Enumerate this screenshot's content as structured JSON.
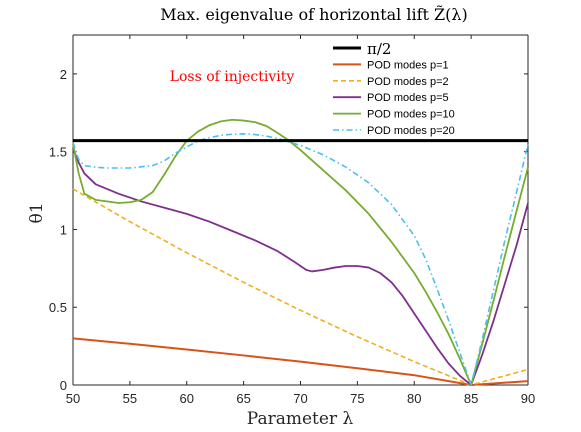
{
  "chart_data": {
    "type": "line",
    "title": "Max. eigenvalue of horizontal lift Z̃(λ)",
    "xlabel": "Parameter λ",
    "ylabel": "θ1",
    "xlim": [
      50,
      90
    ],
    "ylim": [
      0,
      2.25
    ],
    "x_ticks": [
      "50",
      "55",
      "60",
      "65",
      "70",
      "75",
      "80",
      "85",
      "90"
    ],
    "y_ticks": [
      "0",
      "0.5",
      "1",
      "1.5",
      "2"
    ],
    "grid": false,
    "legend_position": "top-right",
    "annotation": {
      "text": "Loss of injectivity",
      "color": "#ff0000"
    },
    "series": [
      {
        "name": "π/2",
        "color": "#000000",
        "dash": "solid",
        "width": 3,
        "x": [
          50,
          90
        ],
        "y": [
          1.5708,
          1.5708
        ]
      },
      {
        "name": "POD modes p=1",
        "color": "#d95319",
        "dash": "solid",
        "width": 2,
        "x": [
          50,
          55,
          60,
          65,
          70,
          75,
          80,
          85,
          90
        ],
        "y": [
          0.3,
          0.265,
          0.228,
          0.19,
          0.15,
          0.108,
          0.063,
          0.0,
          0.025
        ]
      },
      {
        "name": "POD modes p=2",
        "color": "#edb120",
        "dash": "dashed",
        "width": 1.6,
        "x": [
          50,
          55,
          60,
          65,
          70,
          75,
          80,
          85,
          90
        ],
        "y": [
          1.26,
          1.05,
          0.85,
          0.66,
          0.48,
          0.31,
          0.15,
          0.0,
          0.1
        ]
      },
      {
        "name": "POD modes p=5",
        "color": "#7e2f8e",
        "dash": "solid",
        "width": 1.8,
        "x": [
          50,
          50.5,
          51,
          52,
          54,
          56,
          58,
          60,
          62,
          64,
          66,
          68,
          69.5,
          70.5,
          71,
          72,
          73,
          74,
          75,
          76,
          77,
          78,
          79,
          80,
          81,
          82,
          83,
          84,
          85,
          86,
          87,
          88,
          89,
          90
        ],
        "y": [
          1.52,
          1.43,
          1.36,
          1.29,
          1.23,
          1.18,
          1.14,
          1.1,
          1.05,
          0.99,
          0.93,
          0.86,
          0.79,
          0.74,
          0.73,
          0.74,
          0.755,
          0.765,
          0.765,
          0.755,
          0.72,
          0.66,
          0.57,
          0.46,
          0.35,
          0.24,
          0.14,
          0.06,
          0.0,
          0.2,
          0.42,
          0.66,
          0.9,
          1.17
        ]
      },
      {
        "name": "POD modes p=10",
        "color": "#77ac30",
        "dash": "solid",
        "width": 1.8,
        "x": [
          50,
          50.5,
          51,
          52,
          54,
          55,
          56,
          57,
          58,
          59,
          60,
          61,
          62,
          63,
          64,
          65,
          66,
          67,
          68,
          69,
          70,
          72,
          74,
          76,
          78,
          80,
          81,
          82,
          83,
          84,
          85,
          86,
          87,
          88,
          89,
          90
        ],
        "y": [
          1.55,
          1.36,
          1.23,
          1.19,
          1.17,
          1.175,
          1.19,
          1.24,
          1.35,
          1.47,
          1.57,
          1.63,
          1.67,
          1.695,
          1.705,
          1.7,
          1.69,
          1.665,
          1.62,
          1.57,
          1.51,
          1.38,
          1.25,
          1.1,
          0.92,
          0.72,
          0.6,
          0.47,
          0.33,
          0.17,
          0.0,
          0.27,
          0.55,
          0.84,
          1.12,
          1.4
        ]
      },
      {
        "name": "POD modes p=20",
        "color": "#4dbeee",
        "dash": "dashdot",
        "width": 1.6,
        "x": [
          50,
          50.5,
          51,
          52,
          53,
          55,
          57,
          58,
          59,
          60,
          61,
          62,
          63,
          64,
          65,
          66,
          67,
          68,
          70,
          72,
          74,
          76,
          78,
          80,
          81,
          82,
          83,
          84,
          85,
          86,
          87,
          88,
          89,
          90
        ],
        "y": [
          1.56,
          1.45,
          1.41,
          1.4,
          1.395,
          1.395,
          1.41,
          1.44,
          1.49,
          1.53,
          1.57,
          1.59,
          1.605,
          1.612,
          1.615,
          1.61,
          1.6,
          1.585,
          1.54,
          1.48,
          1.4,
          1.3,
          1.16,
          0.96,
          0.81,
          0.62,
          0.42,
          0.21,
          0.0,
          0.3,
          0.62,
          0.94,
          1.24,
          1.55
        ]
      }
    ]
  }
}
